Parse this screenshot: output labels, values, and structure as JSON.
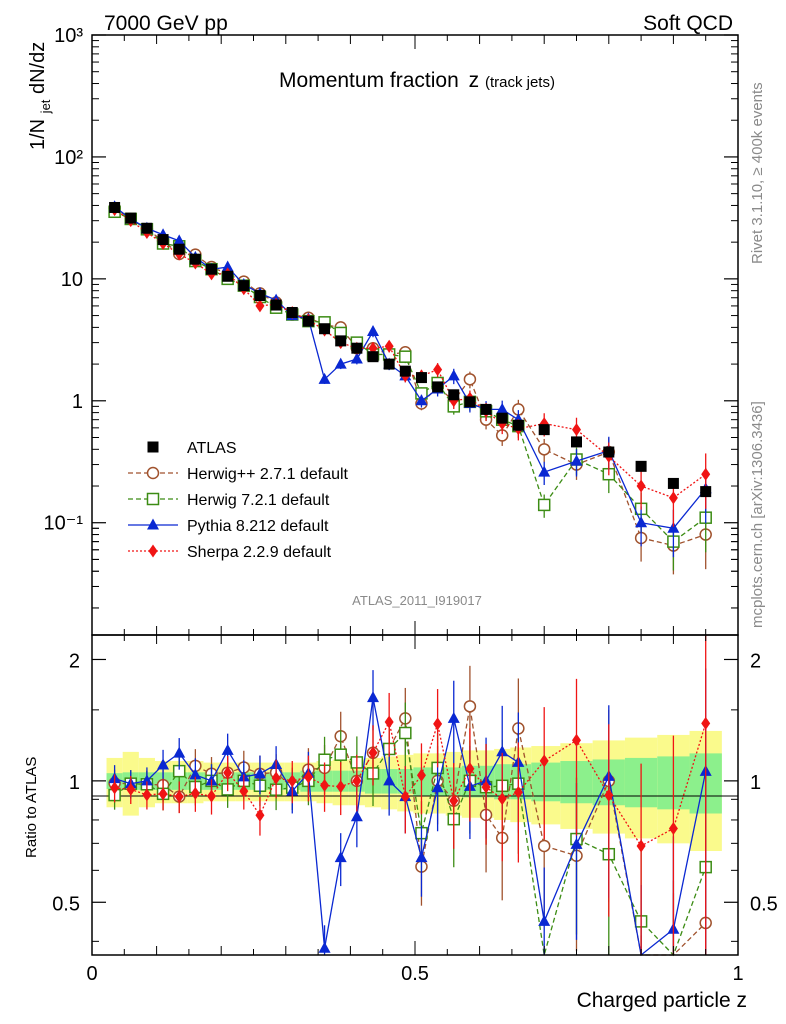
{
  "header": {
    "left": "7000 GeV pp",
    "right": "Soft QCD"
  },
  "side": {
    "rivet": "Rivet 3.1.10, ≥ 400k events",
    "url": "mcplots.cern.ch [arXiv:1306.3436]"
  },
  "colors": {
    "atlas": "#000000",
    "herwigpp": "#a0522d",
    "herwig7": "#3c8c14",
    "pythia": "#0a28d2",
    "sherpa": "#f01414",
    "band_outer": "#fafa8c",
    "band_inner": "#8cf08c"
  },
  "chart_data": [
    {
      "type": "scatter",
      "panel": "main",
      "title": "Momentum fraction",
      "title_var": "z",
      "title_sub": "(track jets)",
      "analysis_label": "ATLAS_2011_I919017",
      "ylabel_prefix": "1/N",
      "ylabel_sub": "jet",
      "ylabel_suffix": " dN/dz",
      "xlabel": "Charged particle z",
      "yscale": "log",
      "ylim": [
        0.012,
        1000
      ],
      "xlim": [
        0,
        1
      ],
      "x_ticks": [
        "0",
        "0.5",
        "1"
      ],
      "y_ticks": [
        "10⁻¹",
        "1",
        "10",
        "10²",
        "10³"
      ],
      "x": [
        0.035,
        0.06,
        0.085,
        0.11,
        0.135,
        0.16,
        0.185,
        0.21,
        0.235,
        0.26,
        0.285,
        0.31,
        0.335,
        0.36,
        0.385,
        0.41,
        0.435,
        0.46,
        0.485,
        0.51,
        0.535,
        0.56,
        0.585,
        0.61,
        0.635,
        0.66,
        0.7,
        0.75,
        0.8,
        0.85,
        0.9,
        0.95
      ],
      "series": [
        {
          "name": "ATLAS",
          "key": "atlas",
          "marker": "square-filled",
          "line": "none",
          "values": [
            38.5,
            31.5,
            26.0,
            21.0,
            17.5,
            14.5,
            12.0,
            10.5,
            8.8,
            7.3,
            6.1,
            5.3,
            4.5,
            3.9,
            3.1,
            2.7,
            2.3,
            2.0,
            1.75,
            1.55,
            1.3,
            1.12,
            0.98,
            0.85,
            0.72,
            0.63,
            0.58,
            0.46,
            0.38,
            0.29,
            0.21,
            0.18
          ]
        },
        {
          "name": "Herwig++ 2.7.1 default",
          "key": "herwigpp",
          "marker": "circle-open",
          "line": "dashed",
          "values": [
            38.0,
            31.0,
            25.5,
            20.5,
            16.0,
            15.8,
            12.5,
            11.0,
            9.5,
            7.6,
            6.4,
            5.1,
            4.8,
            4.2,
            4.0,
            2.7,
            2.7,
            2.4,
            2.5,
            0.95,
            1.3,
            1.0,
            1.5,
            0.7,
            0.52,
            0.85,
            0.4,
            0.3,
            0.38,
            0.075,
            0.065,
            0.08
          ]
        },
        {
          "name": "Herwig 7.2.1 default",
          "key": "herwig7",
          "marker": "square-open",
          "line": "dashed",
          "values": [
            35.5,
            31.0,
            25.5,
            19.5,
            18.5,
            14.0,
            12.0,
            10.0,
            8.8,
            7.1,
            5.8,
            5.1,
            4.5,
            4.4,
            3.6,
            3.0,
            2.4,
            2.4,
            2.3,
            1.15,
            1.4,
            0.9,
            0.98,
            0.82,
            0.7,
            0.62,
            0.14,
            0.33,
            0.25,
            0.13,
            0.07,
            0.11
          ]
        },
        {
          "name": "Pythia 8.212 default",
          "key": "pythia",
          "marker": "triangle-filled",
          "line": "solid",
          "values": [
            39.0,
            31.0,
            26.0,
            23.0,
            20.5,
            15.0,
            12.0,
            12.5,
            9.0,
            7.6,
            6.7,
            5.0,
            4.7,
            1.5,
            2.0,
            2.2,
            3.7,
            2.0,
            1.6,
            1.0,
            1.25,
            1.6,
            0.95,
            0.85,
            0.85,
            0.7,
            0.26,
            0.32,
            0.39,
            0.1,
            0.09,
            0.19
          ]
        },
        {
          "name": "Sherpa 2.2.9 default",
          "key": "sherpa",
          "marker": "diamond-filled",
          "line": "dotted",
          "values": [
            37.0,
            30.0,
            24.0,
            19.5,
            16.0,
            13.5,
            11.0,
            11.0,
            8.3,
            6.0,
            6.2,
            5.3,
            4.6,
            3.8,
            3.0,
            2.7,
            2.7,
            2.8,
            1.6,
            1.6,
            1.8,
            1.0,
            1.05,
            0.82,
            0.65,
            0.59,
            0.65,
            0.58,
            0.35,
            0.2,
            0.16,
            0.25
          ]
        }
      ]
    },
    {
      "type": "line",
      "panel": "ratio",
      "ylabel": "Ratio to ATLAS",
      "xlabel": "Charged particle z",
      "ylim": [
        0.37,
        2.3
      ],
      "y_ticks": [
        "0.5",
        "1",
        "2"
      ],
      "reference": 1.0,
      "band_inner_halfwidth": [
        0.045,
        0.05,
        0.05,
        0.05,
        0.05,
        0.05,
        0.05,
        0.05,
        0.05,
        0.05,
        0.05,
        0.05,
        0.06,
        0.06,
        0.06,
        0.06,
        0.07,
        0.07,
        0.07,
        0.08,
        0.08,
        0.08,
        0.09,
        0.09,
        0.1,
        0.1,
        0.11,
        0.12,
        0.13,
        0.14,
        0.15,
        0.17
      ],
      "band_outer_halfwidth": [
        0.14,
        0.18,
        0.14,
        0.12,
        0.12,
        0.12,
        0.11,
        0.11,
        0.11,
        0.11,
        0.11,
        0.11,
        0.11,
        0.12,
        0.13,
        0.13,
        0.14,
        0.15,
        0.16,
        0.17,
        0.17,
        0.18,
        0.19,
        0.19,
        0.2,
        0.21,
        0.22,
        0.24,
        0.26,
        0.28,
        0.3,
        0.33
      ]
    }
  ]
}
